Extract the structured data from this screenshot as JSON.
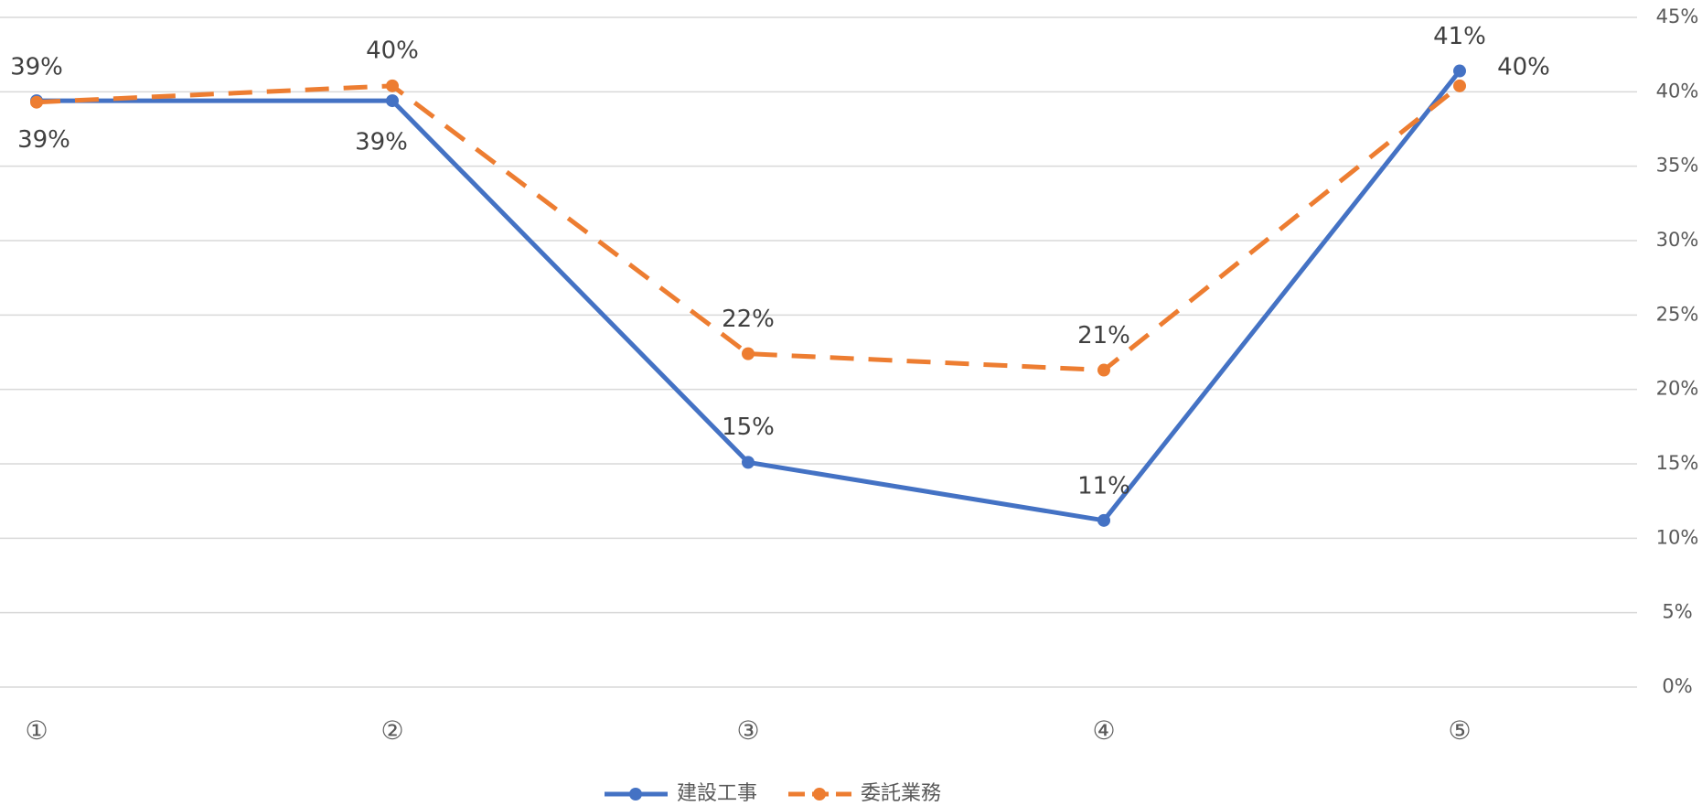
{
  "chart_data": {
    "type": "line",
    "categories": [
      "①",
      "②",
      "③",
      "④",
      "⑤"
    ],
    "series": [
      {
        "name": "建設工事",
        "color": "#4472c4",
        "dash": false,
        "values": [
          39.4,
          39.4,
          15.1,
          11.2,
          41.4
        ],
        "value_labels": [
          "39%",
          "39%",
          "15%",
          "11%",
          "41%"
        ]
      },
      {
        "name": "委託業務",
        "color": "#ed7d31",
        "dash": true,
        "values": [
          39.3,
          40.4,
          22.4,
          21.3,
          40.4
        ],
        "value_labels": [
          "39%",
          "40%",
          "22%",
          "21%",
          "40%"
        ]
      }
    ],
    "ylim": [
      0,
      45
    ],
    "yticks": [
      {
        "value": 0,
        "label": "0%"
      },
      {
        "value": 5,
        "label": "5%"
      },
      {
        "value": 10,
        "label": "10%"
      },
      {
        "value": 15,
        "label": "15%"
      },
      {
        "value": 20,
        "label": "20%"
      },
      {
        "value": 25,
        "label": "25%"
      },
      {
        "value": 30,
        "label": "30%"
      },
      {
        "value": 35,
        "label": "35%"
      },
      {
        "value": 40,
        "label": "40%"
      },
      {
        "value": 45,
        "label": "45%"
      }
    ],
    "grid": true,
    "legend": "bottom"
  }
}
